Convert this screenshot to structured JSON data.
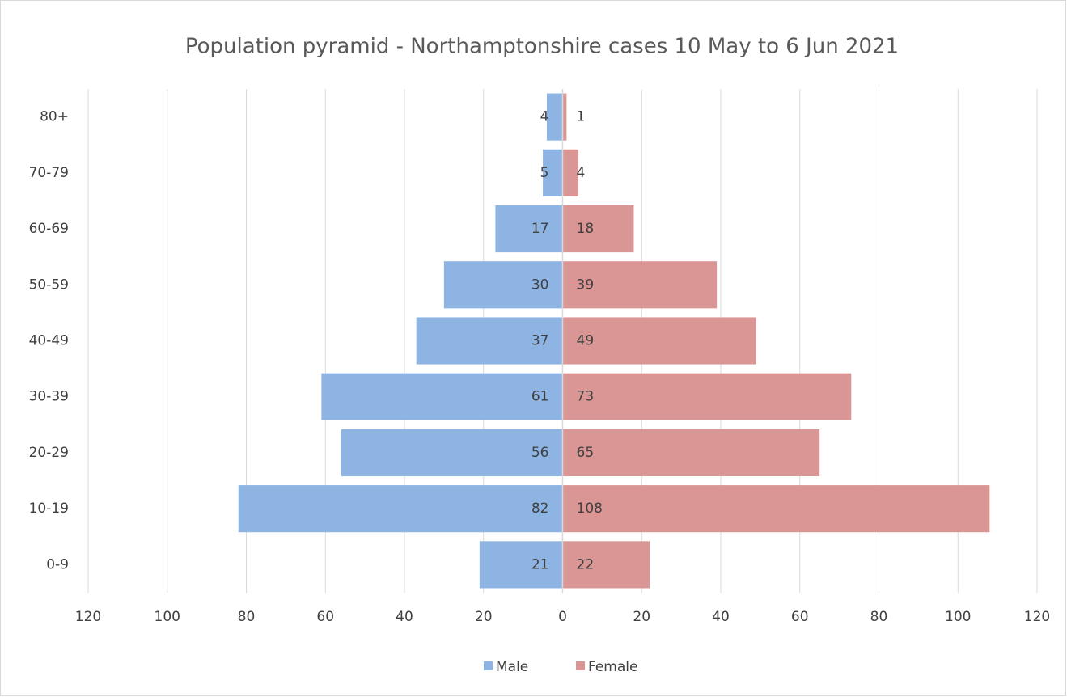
{
  "chart_data": {
    "type": "pyramid",
    "title": "Population pyramid - Northamptonshire cases 10 May to 6 Jun 2021",
    "categories": [
      "0-9",
      "10-19",
      "20-29",
      "30-39",
      "40-49",
      "50-59",
      "60-69",
      "70-79",
      "80+"
    ],
    "series": [
      {
        "name": "Male",
        "color": "#8eb4e3",
        "values": [
          -21,
          -82,
          -56,
          -61,
          -37,
          -30,
          -17,
          -5,
          -4
        ],
        "value_labels": [
          "21",
          "82",
          "56",
          "61",
          "37",
          "30",
          "17",
          "5",
          "4"
        ]
      },
      {
        "name": "Female",
        "color": "#d99694",
        "values": [
          22,
          108,
          65,
          73,
          49,
          39,
          18,
          4,
          1
        ]
      }
    ],
    "xlim": [
      -120,
      120
    ],
    "xticks": [
      {
        "value": -120,
        "label": "120"
      },
      {
        "value": -100,
        "label": "100"
      },
      {
        "value": -80,
        "label": "80"
      },
      {
        "value": -60,
        "label": "60"
      },
      {
        "value": -40,
        "label": "40"
      },
      {
        "value": -20,
        "label": "20"
      },
      0,
      20,
      40,
      60,
      80,
      100,
      120
    ],
    "grid": true,
    "legend": "bottom"
  }
}
